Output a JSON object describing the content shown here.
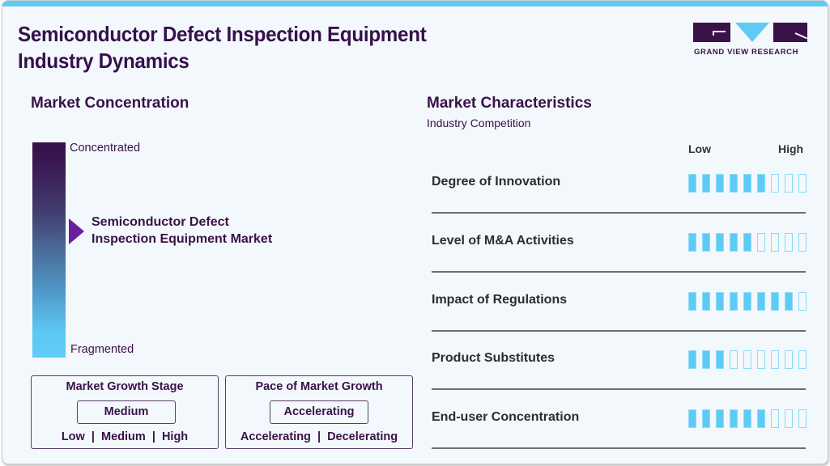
{
  "header": {
    "title_line1": "Semiconductor Defect Inspection Equipment",
    "title_line2": "Industry Dynamics",
    "logo_text": "GRAND VIEW RESEARCH",
    "accent_color": "#5fcbf5",
    "brand_color": "#3a1148"
  },
  "concentration": {
    "title": "Market Concentration",
    "top_label": "Concentrated",
    "bottom_label": "Fragmented",
    "market_line1": "Semiconductor Defect",
    "market_line2": "Inspection Equipment Market",
    "pointer_color": "#6a1fa0"
  },
  "growth_stage": {
    "title": "Market Growth Stage",
    "value": "Medium",
    "options": "Low  |  Medium  |  High"
  },
  "growth_pace": {
    "title": "Pace of Market Growth",
    "value": "Accelerating",
    "options": "Accelerating  |  Decelerating"
  },
  "characteristics": {
    "title": "Market Characteristics",
    "subtitle": "Industry Competition",
    "scale_low": "Low",
    "scale_high": "High",
    "max_level": 9,
    "rows": [
      {
        "label": "Degree of Innovation",
        "level": 6
      },
      {
        "label": "Level of M&A Activities",
        "level": 5
      },
      {
        "label": "Impact of Regulations",
        "level": 8
      },
      {
        "label": "Product Substitutes",
        "level": 3
      },
      {
        "label": "End-user Concentration",
        "level": 6
      }
    ]
  },
  "chart_data": {
    "type": "bar",
    "title": "Market Characteristics - Industry Competition",
    "categories": [
      "Degree of Innovation",
      "Level of M&A Activities",
      "Impact of Regulations",
      "Product Substitutes",
      "End-user Concentration"
    ],
    "values": [
      6,
      5,
      8,
      3,
      6
    ],
    "scale": {
      "min_label": "Low",
      "max_label": "High",
      "max": 9
    }
  }
}
